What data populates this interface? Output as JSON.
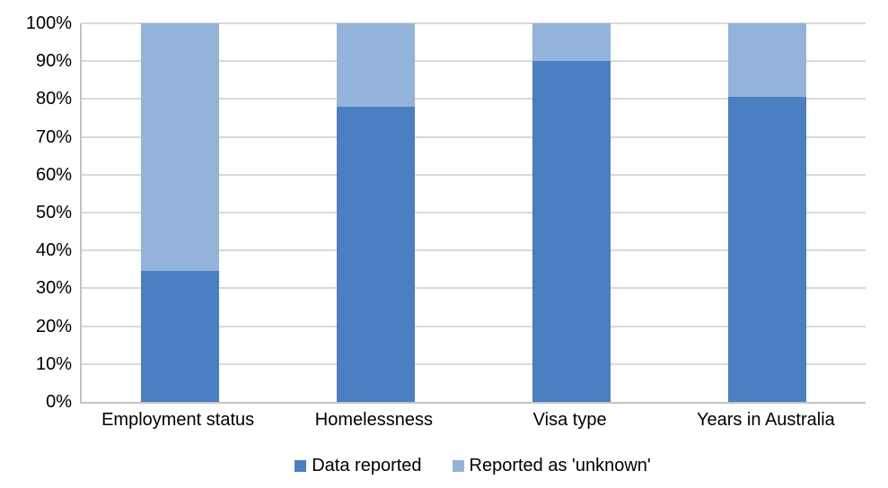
{
  "chart_data": {
    "type": "bar",
    "stacked": true,
    "title": "",
    "xlabel": "",
    "ylabel": "",
    "categories": [
      "Employment status",
      "Homelessness",
      "Visa type",
      "Years in Australia"
    ],
    "series": [
      {
        "name": "Data reported",
        "color": "#4a7fc1",
        "values": [
          34.5,
          78,
          90,
          80.5
        ]
      },
      {
        "name": "Reported as 'unknown'",
        "color": "#94b3db",
        "values": [
          65.5,
          22,
          10,
          19.5
        ]
      }
    ],
    "ylim": [
      0,
      100
    ],
    "ytick_step": 10,
    "ytick_labels": [
      "0%",
      "10%",
      "20%",
      "30%",
      "40%",
      "50%",
      "60%",
      "70%",
      "80%",
      "90%",
      "100%"
    ],
    "grid": true,
    "legend_position": "bottom",
    "colors": {
      "gridline": "#d9d9d9",
      "axis_line": "#c3c3c3",
      "text": "#000000",
      "background": "#ffffff"
    }
  }
}
